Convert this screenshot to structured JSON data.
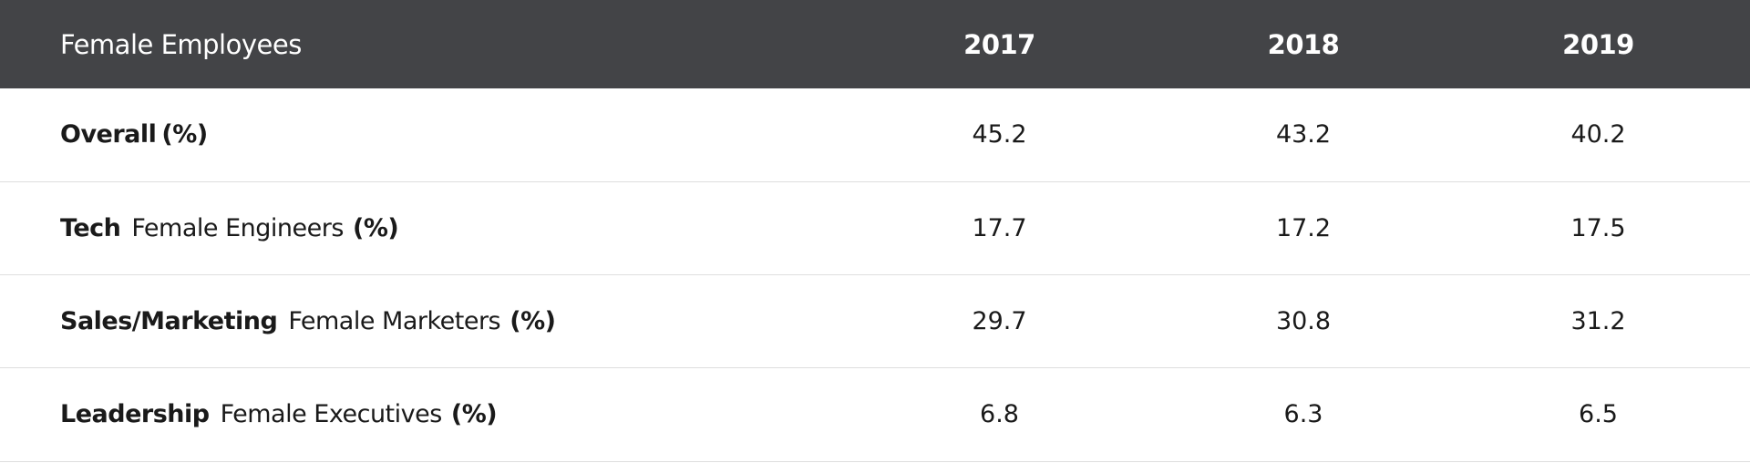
{
  "table": {
    "header": {
      "title": "Female Employees",
      "years": [
        "2017",
        "2018",
        "2019"
      ]
    },
    "rows": [
      {
        "category": "Overall",
        "metric": "",
        "unit": "(%)",
        "values": [
          "45.2",
          "43.2",
          "40.2"
        ]
      },
      {
        "category": "Tech",
        "metric": "Female Engineers",
        "unit": "(%)",
        "values": [
          "17.7",
          "17.2",
          "17.5"
        ]
      },
      {
        "category": "Sales/Marketing",
        "metric": "Female Marketers",
        "unit": "(%)",
        "values": [
          "29.7",
          "30.8",
          "31.2"
        ]
      },
      {
        "category": "Leadership",
        "metric": "Female Executives",
        "unit": "(%)",
        "values": [
          "6.8",
          "6.3",
          "6.5"
        ]
      }
    ]
  },
  "colors": {
    "header_background": "#434447",
    "header_text": "#ffffff",
    "row_divider": "#dedede",
    "body_text": "#1a1a1a"
  }
}
